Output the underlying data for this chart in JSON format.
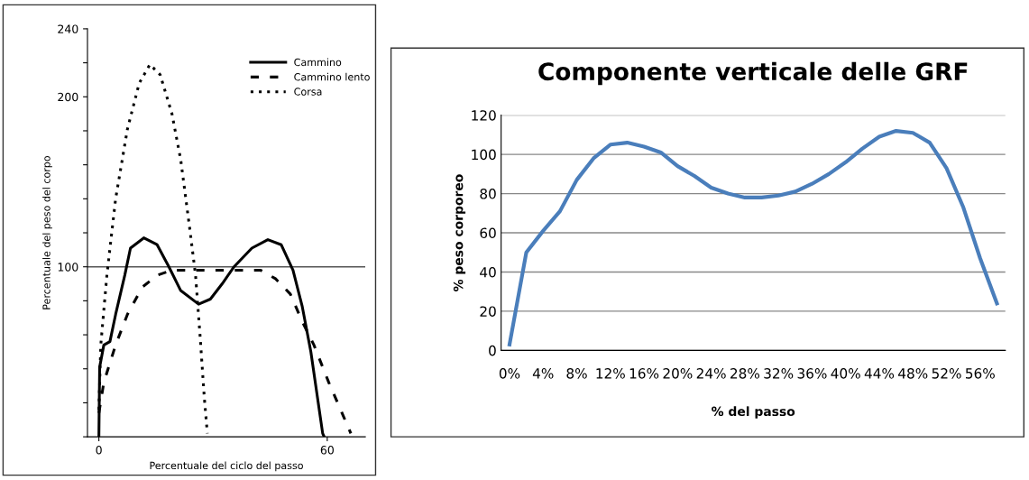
{
  "chart_data": [
    {
      "type": "line",
      "xlabel": "Percentuale del ciclo del passo",
      "ylabel": "Percentuale del peso del corpo",
      "xlim": [
        -3,
        70
      ],
      "xticks": [
        0,
        60
      ],
      "ylim": [
        0,
        240
      ],
      "yticks": [
        {
          "value": 0,
          "label": null
        },
        {
          "value": 20,
          "label": null
        },
        {
          "value": 40,
          "label": null
        },
        {
          "value": 60,
          "label": null
        },
        {
          "value": 80,
          "label": null
        },
        {
          "value": 100,
          "label": "100"
        },
        {
          "value": 120,
          "label": null
        },
        {
          "value": 140,
          "label": null
        },
        {
          "value": 160,
          "label": null
        },
        {
          "value": 180,
          "label": null
        },
        {
          "value": 200,
          "label": "200"
        },
        {
          "value": 220,
          "label": null
        },
        {
          "value": 240,
          "label": "240"
        }
      ],
      "grid": false,
      "legend": "top right",
      "ref_lines": [
        {
          "axis": "y",
          "value": 100,
          "color": "#555555"
        }
      ],
      "series": [
        {
          "name": "Cammino",
          "color": "#000000",
          "line_style": "solid",
          "x": [
            0,
            0.2,
            1.3,
            2.9,
            4.4,
            6.8,
            8.3,
            11.8,
            15.3,
            18.4,
            21.5,
            26.2,
            29.3,
            32.4,
            35.5,
            40.2,
            44.4,
            47.9,
            51,
            53.4,
            55.7,
            58.8,
            59.2
          ],
          "values": [
            0,
            41,
            54,
            56,
            72,
            95,
            111,
            117,
            113,
            100,
            86,
            78,
            81,
            90,
            100,
            111,
            116,
            113,
            98,
            77,
            50,
            2,
            0
          ]
        },
        {
          "name": "Cammino lento",
          "color": "#000000",
          "line_style": "dashed",
          "x": [
            0,
            1.3,
            4.4,
            7.5,
            11.4,
            15.3,
            19.2,
            24.6,
            32.4,
            42.5,
            46.4,
            50.3,
            53.4,
            56.5,
            60.4,
            63.5,
            66.2
          ],
          "values": [
            14,
            32,
            54,
            72,
            88,
            95,
            98,
            98,
            98,
            98,
            93,
            84,
            68,
            54,
            32,
            16,
            2
          ]
        },
        {
          "name": "Corsa",
          "color": "#000000",
          "line_style": "dotted",
          "x": [
            0,
            0.5,
            2.1,
            4.4,
            7.5,
            10.6,
            13.4,
            16.1,
            19.2,
            21.5,
            23.9,
            25.4,
            26.6,
            27.7,
            28.5
          ],
          "values": [
            16,
            54,
            95,
            140,
            181,
            208,
            219,
            213,
            190,
            163,
            122,
            95,
            59,
            23,
            2
          ]
        }
      ]
    },
    {
      "type": "line",
      "title": "Componente verticale delle GRF",
      "xlabel": "% del passo",
      "ylabel": "% peso corporeo",
      "ylim": [
        0,
        120
      ],
      "yticks": [
        0,
        20,
        40,
        60,
        80,
        100,
        120
      ],
      "grid": "y",
      "categories": [
        "0%",
        null,
        "4%",
        null,
        "8%",
        null,
        "12%",
        null,
        "16%",
        null,
        "20%",
        null,
        "24%",
        null,
        "28%",
        null,
        "32%",
        null,
        "36%",
        null,
        "40%",
        null,
        "44%",
        null,
        "48%",
        null,
        "52%",
        null,
        "56%",
        null
      ],
      "series": [
        {
          "color": "#4a7ebb",
          "values": [
            3,
            50,
            61,
            71,
            87,
            98,
            105,
            106,
            104,
            101,
            94,
            89,
            83,
            80,
            78,
            78,
            79,
            81,
            85,
            90,
            96,
            103,
            109,
            112,
            111,
            106,
            93,
            73,
            47,
            24
          ]
        }
      ]
    }
  ]
}
